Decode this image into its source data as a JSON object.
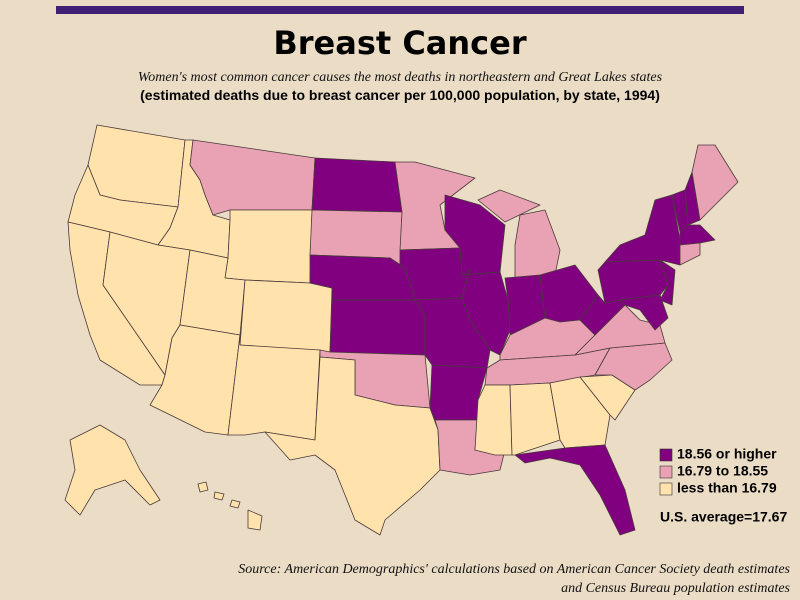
{
  "header": {
    "title": "Breast Cancer",
    "subtitle": "Women's most common cancer causes the most deaths in northeastern and Great Lakes states",
    "description": "(estimated deaths due to breast cancer per 100,000 population, by state, 1994)"
  },
  "legend": [
    {
      "label": "18.56 or higher",
      "color": "#800080"
    },
    {
      "label": "16.79 to 18.55",
      "color": "#e8a2b4"
    },
    {
      "label": "less than 16.79",
      "color": "#ffe2ac"
    }
  ],
  "note": "U.S. average=17.67",
  "source": [
    "Source: American Demographics' calculations based on American Cancer Society death estimates",
    "and Census Bureau population estimates"
  ]
}
